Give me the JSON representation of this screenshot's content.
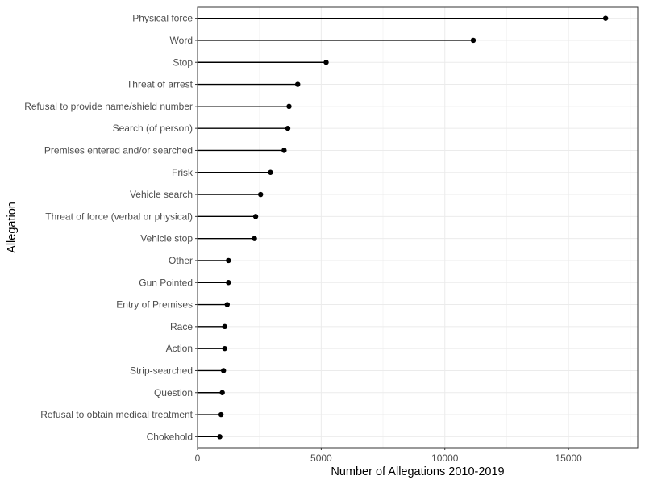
{
  "chart_data": {
    "type": "lollipop",
    "orientation": "horizontal",
    "title": "",
    "xlabel": "Number of Allegations 2010-2019",
    "ylabel": "Allegation",
    "xlim": [
      0,
      17800
    ],
    "x_ticks": [
      0,
      5000,
      10000,
      15000
    ],
    "x_tick_labels": [
      "0",
      "5000",
      "10000",
      "15000"
    ],
    "grid": true,
    "legend": "none",
    "categories": [
      "Physical force",
      "Word",
      "Stop",
      "Threat of arrest",
      "Refusal to provide name/shield number",
      "Search (of person)",
      "Premises entered and/or searched",
      "Frisk",
      "Vehicle search",
      "Threat of force (verbal or physical)",
      "Vehicle stop",
      "Other",
      "Gun Pointed",
      "Entry of Premises",
      "Race",
      "Action",
      "Strip-searched",
      "Question",
      "Refusal to obtain medical treatment",
      "Chokehold"
    ],
    "values": [
      16500,
      11150,
      5200,
      4050,
      3700,
      3650,
      3500,
      2950,
      2550,
      2350,
      2300,
      1250,
      1250,
      1200,
      1100,
      1100,
      1050,
      1000,
      950,
      900
    ],
    "colors": {
      "mark": "#000000",
      "grid_major": "#ebebeb",
      "grid_minor": "#f5f5f5",
      "panel_border": "#333333",
      "tick_text": "#4d4d4d"
    }
  }
}
